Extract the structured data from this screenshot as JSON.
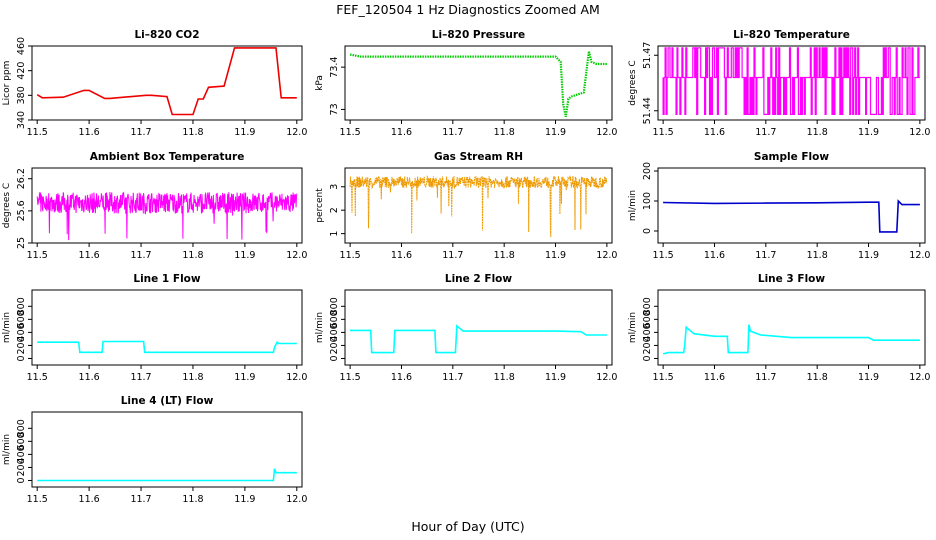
{
  "figure": {
    "title": "FEF_120504  1 Hz Diagnostics Zoomed AM",
    "xlabel": "Hour of Day (UTC)"
  },
  "chart_data": [
    {
      "type": "line",
      "title": "Li–820 CO2",
      "ylabel": "Licor ppm",
      "color": "#ee0000",
      "style": "step",
      "xlim": [
        11.5,
        12.0
      ],
      "ylim": [
        340,
        460
      ],
      "yticks": [
        340,
        380,
        420,
        460
      ],
      "x": [
        11.5,
        11.51,
        11.55,
        11.59,
        11.6,
        11.63,
        11.64,
        11.71,
        11.72,
        11.75,
        11.76,
        11.8,
        11.81,
        11.82,
        11.83,
        11.86,
        11.88,
        11.96,
        11.97,
        12.0
      ],
      "y": [
        381,
        376,
        377,
        388,
        388,
        375,
        375,
        380,
        380,
        378,
        349,
        349,
        374,
        374,
        393,
        395,
        457,
        457,
        376,
        376
      ]
    },
    {
      "type": "line",
      "title": "Li–820 Pressure",
      "ylabel": "kPa",
      "color": "#00cc00",
      "style": "dots",
      "xlim": [
        11.5,
        12.0
      ],
      "ylim": [
        72.9,
        73.6
      ],
      "yticks": [
        73.0,
        73.4
      ],
      "x": [
        11.5,
        11.52,
        11.6,
        11.7,
        11.8,
        11.9,
        11.91,
        11.915,
        11.92,
        11.925,
        11.93,
        11.955,
        11.965,
        11.97,
        11.98,
        12.0
      ],
      "y": [
        73.52,
        73.5,
        73.5,
        73.5,
        73.5,
        73.5,
        73.45,
        73.05,
        72.93,
        73.1,
        73.12,
        73.16,
        73.55,
        73.45,
        73.43,
        73.43
      ]
    },
    {
      "type": "line",
      "title": "Li–820 Temperature",
      "ylabel": "degrees C",
      "color": "#ff00ff",
      "style": "switching",
      "xlim": [
        11.5,
        12.0
      ],
      "ylim": [
        51.435,
        51.475
      ],
      "yticks": [
        51.44,
        51.47
      ],
      "levels": [
        51.438,
        51.458,
        51.474
      ],
      "base": 51.458
    },
    {
      "type": "line",
      "title": "Ambient Box Temperature",
      "ylabel": "degrees C",
      "color": "#ff00ff",
      "style": "noise",
      "xlim": [
        11.5,
        12.0
      ],
      "ylim": [
        25.0,
        26.4
      ],
      "yticks": [
        25.0,
        25.6,
        26.2
      ],
      "mean": 25.75,
      "spread": 0.2
    },
    {
      "type": "line",
      "title": "Gas Stream RH",
      "ylabel": "percent",
      "color": "#ee9a00",
      "style": "noise-dips",
      "xlim": [
        11.5,
        12.0
      ],
      "ylim": [
        0.6,
        3.8
      ],
      "yticks": [
        1.0,
        2.0,
        3.0
      ],
      "mean": 3.2,
      "spread": 0.25
    },
    {
      "type": "line",
      "title": "Sample Flow",
      "ylabel": "ml/min",
      "color": "#0000cc",
      "style": "step",
      "xlim": [
        11.5,
        12.0
      ],
      "ylim": [
        -40,
        210
      ],
      "yticks": [
        0,
        100,
        200
      ],
      "x": [
        11.5,
        11.6,
        11.7,
        11.8,
        11.9,
        11.92,
        11.922,
        11.955,
        11.958,
        11.965,
        12.0
      ],
      "y": [
        95,
        92,
        93,
        94,
        96,
        96,
        -3,
        -3,
        100,
        88,
        88
      ]
    },
    {
      "type": "line",
      "title": "Line 1 Flow",
      "ylabel": "ml/min",
      "color": "#00ffff",
      "style": "step",
      "xlim": [
        11.5,
        12.0
      ],
      "ylim": [
        -100,
        1050
      ],
      "yticks": [
        0,
        200,
        400,
        600,
        800
      ],
      "x": [
        11.5,
        11.58,
        11.582,
        11.625,
        11.627,
        11.705,
        11.707,
        11.955,
        11.957,
        11.962,
        11.965,
        12.0
      ],
      "y": [
        250,
        250,
        95,
        95,
        260,
        260,
        95,
        95,
        170,
        250,
        230,
        230
      ]
    },
    {
      "type": "line",
      "title": "Line 2 Flow",
      "ylabel": "ml/min",
      "color": "#00ffff",
      "style": "step",
      "xlim": [
        11.5,
        12.0
      ],
      "ylim": [
        -100,
        1050
      ],
      "yticks": [
        0,
        200,
        400,
        600,
        800
      ],
      "x": [
        11.5,
        11.54,
        11.542,
        11.585,
        11.587,
        11.665,
        11.667,
        11.705,
        11.708,
        11.72,
        11.8,
        11.9,
        11.95,
        11.96,
        12.0
      ],
      "y": [
        430,
        430,
        90,
        90,
        430,
        430,
        90,
        90,
        500,
        420,
        420,
        420,
        410,
        360,
        360
      ]
    },
    {
      "type": "line",
      "title": "Line 3 Flow",
      "ylabel": "ml/min",
      "color": "#00ffff",
      "style": "step",
      "xlim": [
        11.5,
        12.0
      ],
      "ylim": [
        -100,
        1050
      ],
      "yticks": [
        0,
        200,
        400,
        600,
        800
      ],
      "x": [
        11.5,
        11.51,
        11.54,
        11.542,
        11.545,
        11.56,
        11.6,
        11.625,
        11.627,
        11.665,
        11.667,
        11.67,
        11.69,
        11.75,
        11.9,
        11.91,
        12.0
      ],
      "y": [
        70,
        90,
        90,
        200,
        480,
        380,
        340,
        340,
        90,
        90,
        520,
        420,
        360,
        320,
        320,
        280,
        280
      ]
    },
    {
      "type": "line",
      "title": "Line 4 (LT) Flow",
      "ylabel": "ml/min",
      "color": "#00ffff",
      "style": "step",
      "xlim": [
        11.5,
        12.0
      ],
      "ylim": [
        -100,
        1050
      ],
      "yticks": [
        0,
        200,
        400,
        600,
        800
      ],
      "x": [
        11.5,
        11.955,
        11.957,
        11.96,
        12.0
      ],
      "y": [
        0,
        0,
        180,
        120,
        120
      ]
    }
  ],
  "x_ticks": [
    "11.5",
    "11.6",
    "11.7",
    "11.8",
    "11.9",
    "12.0"
  ]
}
